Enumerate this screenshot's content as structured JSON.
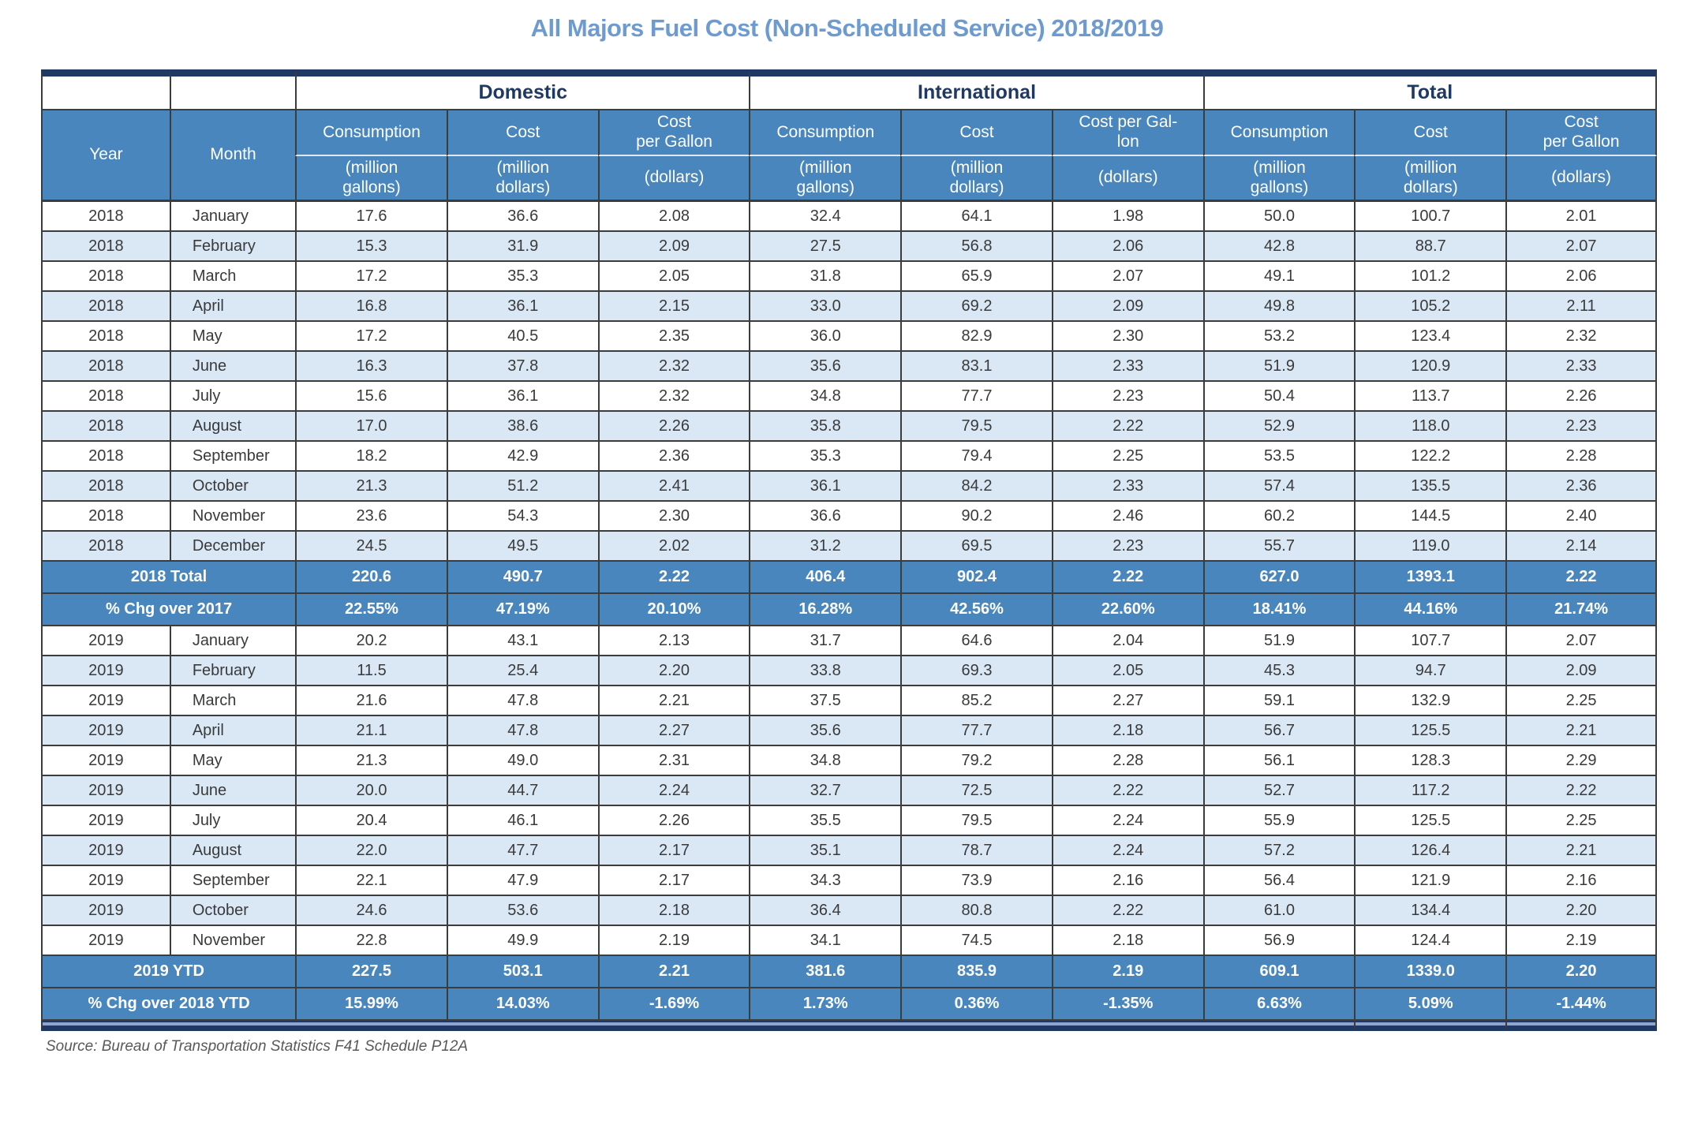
{
  "page": {
    "title": "All Majors Fuel Cost (Non-Scheduled Service) 2018/2019",
    "source": "Source: Bureau of Transportation Statistics F41 Schedule P12A"
  },
  "colors": {
    "header_blue": "#4986BE",
    "alt_row_blue": "#DAE8F6",
    "footer_bar_blue": "#8EA5D2",
    "border_navy": "#1F3864",
    "title_blue": "#6D9BD1",
    "grid_gray": "#3C3C3C"
  },
  "table": {
    "year_header": "Year",
    "month_header": "Month",
    "groups": [
      {
        "label": "Domestic"
      },
      {
        "label": "International"
      },
      {
        "label": "Total"
      }
    ],
    "sub_headers": [
      "Consumption",
      "Cost",
      "Cost\nper Gallon",
      "Consumption",
      "Cost",
      "Cost per Gal-\nlon",
      "Consumption",
      "Cost",
      "Cost\nper Gallon"
    ],
    "unit_headers": [
      "(million\ngallons)",
      "(million\ndollars)",
      "(dollars)",
      "(million\ngallons)",
      "(million\ndollars)",
      "(dollars)",
      "(million\ngallons)",
      "(million\ndollars)",
      "(dollars)"
    ],
    "rows": [
      {
        "type": "data",
        "year": "2018",
        "month": "January",
        "values": [
          "17.6",
          "36.6",
          "2.08",
          "32.4",
          "64.1",
          "1.98",
          "50.0",
          "100.7",
          "2.01"
        ]
      },
      {
        "type": "data",
        "year": "2018",
        "month": "February",
        "values": [
          "15.3",
          "31.9",
          "2.09",
          "27.5",
          "56.8",
          "2.06",
          "42.8",
          "88.7",
          "2.07"
        ]
      },
      {
        "type": "data",
        "year": "2018",
        "month": "March",
        "values": [
          "17.2",
          "35.3",
          "2.05",
          "31.8",
          "65.9",
          "2.07",
          "49.1",
          "101.2",
          "2.06"
        ]
      },
      {
        "type": "data",
        "year": "2018",
        "month": "April",
        "values": [
          "16.8",
          "36.1",
          "2.15",
          "33.0",
          "69.2",
          "2.09",
          "49.8",
          "105.2",
          "2.11"
        ]
      },
      {
        "type": "data",
        "year": "2018",
        "month": "May",
        "values": [
          "17.2",
          "40.5",
          "2.35",
          "36.0",
          "82.9",
          "2.30",
          "53.2",
          "123.4",
          "2.32"
        ]
      },
      {
        "type": "data",
        "year": "2018",
        "month": "June",
        "values": [
          "16.3",
          "37.8",
          "2.32",
          "35.6",
          "83.1",
          "2.33",
          "51.9",
          "120.9",
          "2.33"
        ]
      },
      {
        "type": "data",
        "year": "2018",
        "month": "July",
        "values": [
          "15.6",
          "36.1",
          "2.32",
          "34.8",
          "77.7",
          "2.23",
          "50.4",
          "113.7",
          "2.26"
        ]
      },
      {
        "type": "data",
        "year": "2018",
        "month": "August",
        "values": [
          "17.0",
          "38.6",
          "2.26",
          "35.8",
          "79.5",
          "2.22",
          "52.9",
          "118.0",
          "2.23"
        ]
      },
      {
        "type": "data",
        "year": "2018",
        "month": "September",
        "values": [
          "18.2",
          "42.9",
          "2.36",
          "35.3",
          "79.4",
          "2.25",
          "53.5",
          "122.2",
          "2.28"
        ]
      },
      {
        "type": "data",
        "year": "2018",
        "month": "October",
        "values": [
          "21.3",
          "51.2",
          "2.41",
          "36.1",
          "84.2",
          "2.33",
          "57.4",
          "135.5",
          "2.36"
        ]
      },
      {
        "type": "data",
        "year": "2018",
        "month": "November",
        "values": [
          "23.6",
          "54.3",
          "2.30",
          "36.6",
          "90.2",
          "2.46",
          "60.2",
          "144.5",
          "2.40"
        ]
      },
      {
        "type": "data",
        "year": "2018",
        "month": "December",
        "values": [
          "24.5",
          "49.5",
          "2.02",
          "31.2",
          "69.5",
          "2.23",
          "55.7",
          "119.0",
          "2.14"
        ]
      },
      {
        "type": "summary",
        "label": "2018 Total",
        "values": [
          "220.6",
          "490.7",
          "2.22",
          "406.4",
          "902.4",
          "2.22",
          "627.0",
          "1393.1",
          "2.22"
        ]
      },
      {
        "type": "summary",
        "label": "% Chg over 2017",
        "values": [
          "22.55%",
          "47.19%",
          "20.10%",
          "16.28%",
          "42.56%",
          "22.60%",
          "18.41%",
          "44.16%",
          "21.74%"
        ]
      },
      {
        "type": "data",
        "year": "2019",
        "month": "January",
        "values": [
          "20.2",
          "43.1",
          "2.13",
          "31.7",
          "64.6",
          "2.04",
          "51.9",
          "107.7",
          "2.07"
        ]
      },
      {
        "type": "data",
        "year": "2019",
        "month": "February",
        "values": [
          "11.5",
          "25.4",
          "2.20",
          "33.8",
          "69.3",
          "2.05",
          "45.3",
          "94.7",
          "2.09"
        ]
      },
      {
        "type": "data",
        "year": "2019",
        "month": "March",
        "values": [
          "21.6",
          "47.8",
          "2.21",
          "37.5",
          "85.2",
          "2.27",
          "59.1",
          "132.9",
          "2.25"
        ]
      },
      {
        "type": "data",
        "year": "2019",
        "month": "April",
        "values": [
          "21.1",
          "47.8",
          "2.27",
          "35.6",
          "77.7",
          "2.18",
          "56.7",
          "125.5",
          "2.21"
        ]
      },
      {
        "type": "data",
        "year": "2019",
        "month": "May",
        "values": [
          "21.3",
          "49.0",
          "2.31",
          "34.8",
          "79.2",
          "2.28",
          "56.1",
          "128.3",
          "2.29"
        ]
      },
      {
        "type": "data",
        "year": "2019",
        "month": "June",
        "values": [
          "20.0",
          "44.7",
          "2.24",
          "32.7",
          "72.5",
          "2.22",
          "52.7",
          "117.2",
          "2.22"
        ]
      },
      {
        "type": "data",
        "year": "2019",
        "month": "July",
        "values": [
          "20.4",
          "46.1",
          "2.26",
          "35.5",
          "79.5",
          "2.24",
          "55.9",
          "125.5",
          "2.25"
        ]
      },
      {
        "type": "data",
        "year": "2019",
        "month": "August",
        "values": [
          "22.0",
          "47.7",
          "2.17",
          "35.1",
          "78.7",
          "2.24",
          "57.2",
          "126.4",
          "2.21"
        ]
      },
      {
        "type": "data",
        "year": "2019",
        "month": "September",
        "values": [
          "22.1",
          "47.9",
          "2.17",
          "34.3",
          "73.9",
          "2.16",
          "56.4",
          "121.9",
          "2.16"
        ]
      },
      {
        "type": "data",
        "year": "2019",
        "month": "October",
        "values": [
          "24.6",
          "53.6",
          "2.18",
          "36.4",
          "80.8",
          "2.22",
          "61.0",
          "134.4",
          "2.20"
        ]
      },
      {
        "type": "data",
        "year": "2019",
        "month": "November",
        "values": [
          "22.8",
          "49.9",
          "2.19",
          "34.1",
          "74.5",
          "2.18",
          "56.9",
          "124.4",
          "2.19"
        ]
      },
      {
        "type": "summary",
        "label": "2019 YTD",
        "values": [
          "227.5",
          "503.1",
          "2.21",
          "381.6",
          "835.9",
          "2.19",
          "609.1",
          "1339.0",
          "2.20"
        ]
      },
      {
        "type": "summary",
        "label": "% Chg over 2018 YTD",
        "values": [
          "15.99%",
          "14.03%",
          "-1.69%",
          "1.73%",
          "0.36%",
          "-1.35%",
          "6.63%",
          "5.09%",
          "-1.44%"
        ]
      }
    ]
  }
}
